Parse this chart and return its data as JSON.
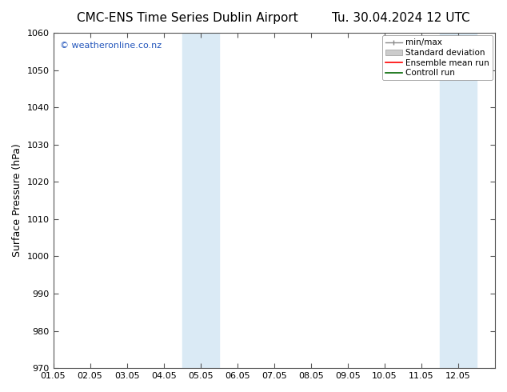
{
  "title_left": "CMC-ENS Time Series Dublin Airport",
  "title_right": "Tu. 30.04.2024 12 UTC",
  "ylabel": "Surface Pressure (hPa)",
  "ylim": [
    970,
    1060
  ],
  "yticks": [
    970,
    980,
    990,
    1000,
    1010,
    1020,
    1030,
    1040,
    1050,
    1060
  ],
  "xlim": [
    0,
    12
  ],
  "xtick_labels": [
    "01.05",
    "02.05",
    "03.05",
    "04.05",
    "05.05",
    "06.05",
    "07.05",
    "08.05",
    "09.05",
    "10.05",
    "11.05",
    "12.05"
  ],
  "xtick_positions": [
    0,
    1,
    2,
    3,
    4,
    5,
    6,
    7,
    8,
    9,
    10,
    11
  ],
  "shaded_regions": [
    {
      "xmin": 3.5,
      "xmax": 4.5,
      "color": "#daeaf5"
    },
    {
      "xmin": 10.5,
      "xmax": 11.5,
      "color": "#daeaf5"
    }
  ],
  "watermark_text": "© weatheronline.co.nz",
  "watermark_color": "#2255bb",
  "background_color": "#ffffff",
  "grid_color": "#bbbbbb",
  "title_fontsize": 11,
  "tick_fontsize": 8,
  "ylabel_fontsize": 9
}
